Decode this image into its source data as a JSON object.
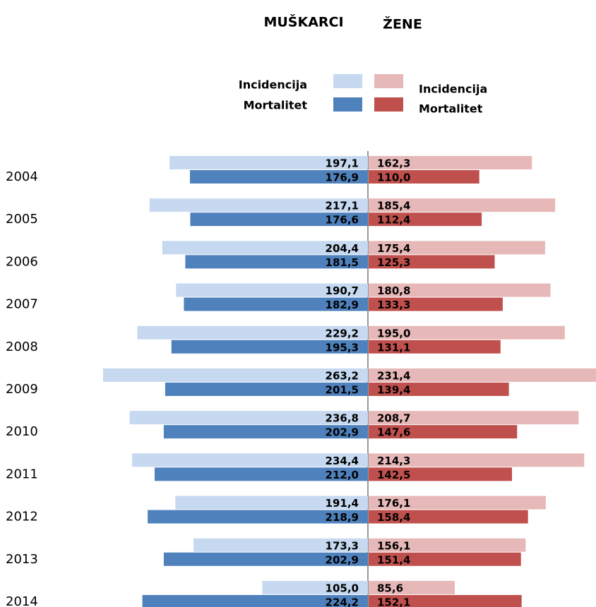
{
  "chart_data": {
    "type": "butterfly-bar",
    "categories": [
      "2004",
      "2005",
      "2006",
      "2007",
      "2008",
      "2009",
      "2010",
      "2011",
      "2012",
      "2013",
      "2014"
    ],
    "groups": [
      {
        "name": "MUŠKARCI",
        "series": [
          {
            "name": "Incidencija",
            "color": "#c6d9f0",
            "values": [
              197.1,
              217.1,
              204.4,
              190.7,
              229.2,
              263.2,
              236.8,
              234.4,
              191.4,
              173.3,
              105.0
            ],
            "value_labels": [
              "197,1",
              "217,1",
              "204,4",
              "190,7",
              "229,2",
              "263,2",
              "236,8",
              "234,4",
              "191,4",
              "173,3",
              "105,0"
            ]
          },
          {
            "name": "Mortalitet",
            "color": "#4f81bd",
            "values": [
              176.9,
              176.6,
              181.5,
              182.9,
              195.3,
              201.5,
              202.9,
              212.0,
              218.9,
              202.9,
              224.2
            ],
            "value_labels": [
              "176,9",
              "176,6",
              "181,5",
              "182,9",
              "195,3",
              "201,5",
              "202,9",
              "212,0",
              "218,9",
              "202,9",
              "224,2"
            ]
          }
        ]
      },
      {
        "name": "ŽENE",
        "series": [
          {
            "name": "Incidencija",
            "color": "#e6b9b8",
            "values": [
              162.3,
              185.4,
              175.4,
              180.8,
              195.0,
              231.4,
              208.7,
              214.3,
              176.1,
              156.1,
              85.6
            ],
            "value_labels": [
              "162,3",
              "185,4",
              "175,4",
              "180,8",
              "195,0",
              "231,4",
              "208,7",
              "214,3",
              "176,1",
              "156,1",
              "85,6"
            ]
          },
          {
            "name": "Mortalitet",
            "color": "#c0504d",
            "values": [
              110.0,
              112.4,
              125.3,
              133.3,
              131.1,
              139.4,
              147.6,
              142.5,
              158.4,
              151.4,
              152.1
            ],
            "value_labels": [
              "110,0",
              "112,4",
              "125,3",
              "133,3",
              "131,1",
              "139,4",
              "147,6",
              "142,5",
              "158,4",
              "151,4",
              "152,1"
            ]
          }
        ]
      }
    ]
  }
}
